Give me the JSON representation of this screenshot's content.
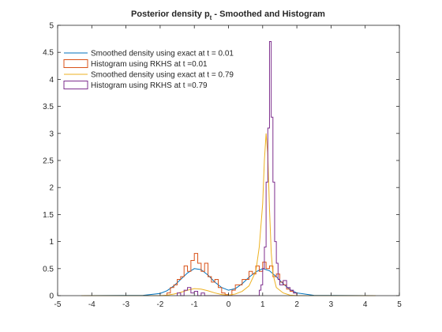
{
  "chart_data": {
    "type": "line",
    "title": "Posterior density p",
    "title_subscript": "t",
    "title_suffix": " - Smoothed and Histogram",
    "xlabel": "",
    "ylabel": "",
    "xlim": [
      -5,
      5
    ],
    "ylim": [
      0,
      5
    ],
    "xticks": [
      -5,
      -4,
      -3,
      -2,
      -1,
      0,
      1,
      2,
      3,
      4,
      5
    ],
    "yticks": [
      0,
      0.5,
      1,
      1.5,
      2,
      2.5,
      3,
      3.5,
      4,
      4.5,
      5
    ],
    "xtick_labels": [
      "-5",
      "-4",
      "-3",
      "-2",
      "-1",
      "0",
      "1",
      "2",
      "3",
      "4",
      "5"
    ],
    "ytick_labels": [
      "0",
      "0.5",
      "1",
      "1.5",
      "2",
      "2.5",
      "3",
      "3.5",
      "4",
      "4.5",
      "5"
    ],
    "grid": false,
    "legend_position": "top-left",
    "series": [
      {
        "name": "Smoothed density using exact at t = 0.01",
        "kind": "line",
        "color": "#0072BD",
        "x": [
          -4.3,
          -2.5,
          -2.0,
          -1.8,
          -1.6,
          -1.4,
          -1.2,
          -1.0,
          -0.8,
          -0.6,
          -0.4,
          -0.2,
          0.0,
          0.2,
          0.4,
          0.6,
          0.8,
          1.0,
          1.2,
          1.4,
          1.6,
          1.8,
          2.0,
          2.5,
          4.3
        ],
        "y": [
          0,
          0.005,
          0.04,
          0.09,
          0.18,
          0.3,
          0.42,
          0.5,
          0.48,
          0.38,
          0.25,
          0.15,
          0.1,
          0.13,
          0.22,
          0.34,
          0.44,
          0.5,
          0.46,
          0.35,
          0.22,
          0.11,
          0.05,
          0.005,
          0
        ]
      },
      {
        "name": "Histogram using RKHS at t =0.01",
        "kind": "stairs",
        "color": "#D95319",
        "edges": [
          -1.8,
          -1.7,
          -1.6,
          -1.5,
          -1.4,
          -1.3,
          -1.2,
          -1.1,
          -1.0,
          -0.9,
          -0.8,
          -0.7,
          -0.6,
          -0.5,
          -0.4,
          -0.3,
          -0.2,
          -0.1,
          0.0,
          0.1,
          0.2,
          0.3,
          0.4,
          0.5,
          0.6,
          0.7,
          0.8,
          0.9,
          1.0,
          1.1,
          1.2,
          1.3,
          1.4,
          1.5,
          1.6,
          1.7,
          1.8,
          1.9,
          2.0
        ],
        "values": [
          0.05,
          0.15,
          0.2,
          0.3,
          0.35,
          0.55,
          0.45,
          0.65,
          0.78,
          0.6,
          0.45,
          0.6,
          0.35,
          0.25,
          0.3,
          0.15,
          0.05,
          0.02,
          0.0,
          0.1,
          0.2,
          0.2,
          0.3,
          0.3,
          0.45,
          0.4,
          0.55,
          0.45,
          0.62,
          0.5,
          0.55,
          0.35,
          0.4,
          0.25,
          0.2,
          0.12,
          0.08,
          0.05
        ]
      },
      {
        "name": "Smoothed density using exact at t = 0.79",
        "kind": "line",
        "color": "#EDB120",
        "x": [
          -4.3,
          -2.0,
          -1.8,
          -1.6,
          -1.4,
          -1.2,
          -1.0,
          -0.8,
          -0.6,
          -0.4,
          -0.2,
          0.0,
          0.2,
          0.4,
          0.6,
          0.8,
          0.9,
          1.0,
          1.05,
          1.1,
          1.15,
          1.2,
          1.25,
          1.3,
          1.4,
          1.6,
          1.8,
          2.0,
          4.3
        ],
        "y": [
          0,
          0.0,
          0.01,
          0.03,
          0.06,
          0.1,
          0.13,
          0.12,
          0.09,
          0.05,
          0.02,
          0.01,
          0.03,
          0.08,
          0.18,
          0.45,
          0.9,
          1.7,
          2.5,
          3.0,
          2.6,
          1.6,
          0.8,
          0.4,
          0.15,
          0.05,
          0.01,
          0.0,
          0
        ]
      },
      {
        "name": "Histogram using RKHS at t =0.79",
        "kind": "stairs",
        "color": "#7E2F8E",
        "edges": [
          -1.5,
          -1.4,
          -1.3,
          -1.2,
          -1.1,
          -1.0,
          -0.9,
          -0.8,
          -0.7,
          0.9,
          0.95,
          1.0,
          1.05,
          1.1,
          1.15,
          1.2,
          1.25,
          1.3,
          1.35,
          1.4,
          1.45,
          1.5,
          1.6,
          1.7,
          1.8,
          1.9,
          2.0
        ],
        "values": [
          0.05,
          0.0,
          0.1,
          0.15,
          0.05,
          0.08,
          0.0,
          0.05,
          0.0,
          0.1,
          0.2,
          0.5,
          0.9,
          2.1,
          3.1,
          4.7,
          3.3,
          2.1,
          1.0,
          0.6,
          0.3,
          0.2,
          0.28,
          0.15,
          0.1,
          0.05
        ]
      }
    ]
  }
}
